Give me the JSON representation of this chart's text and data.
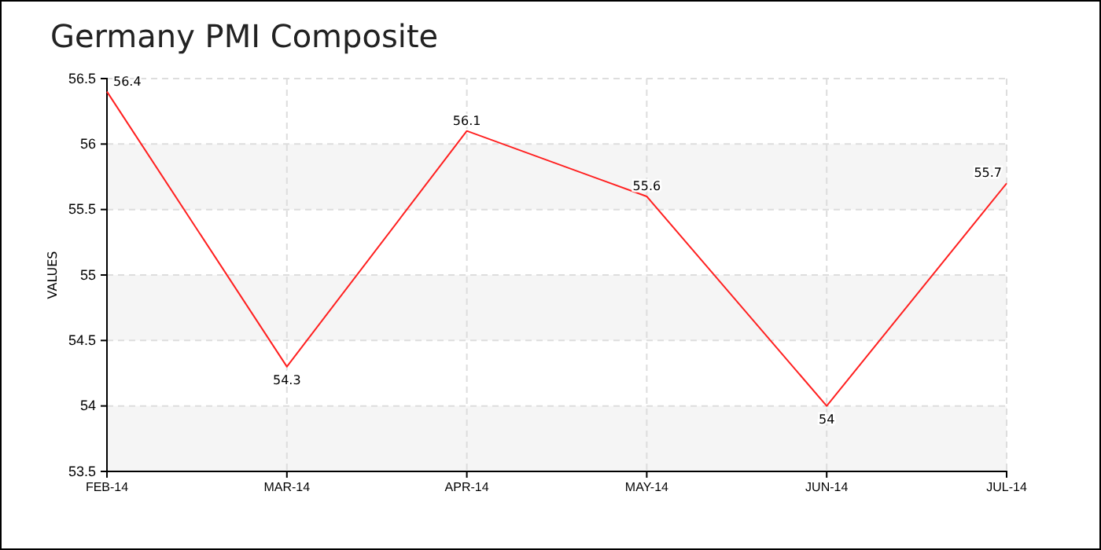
{
  "chart_data": {
    "type": "line",
    "title": "Germany PMI Composite",
    "ylabel": "VALUES",
    "categories": [
      "FEB-14",
      "MAR-14",
      "APR-14",
      "MAY-14",
      "JUN-14",
      "JUL-14"
    ],
    "series": [
      {
        "color": "#ff2020",
        "values": [
          56.4,
          54.3,
          56.1,
          55.6,
          54,
          55.7
        ]
      }
    ],
    "ylim": [
      53.5,
      56.5
    ],
    "yticks": [
      53.5,
      54,
      54.5,
      55,
      55.5,
      56,
      56.5
    ],
    "grid": true,
    "data_labels": true,
    "marker": "none",
    "line_style": "solid"
  }
}
